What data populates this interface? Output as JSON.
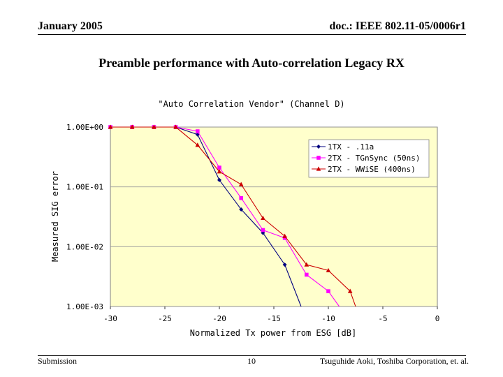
{
  "header": {
    "date": "January 2005",
    "doc_id": "doc.: IEEE 802.11-05/0006r1"
  },
  "slide_title": "Preamble performance with Auto-correlation Legacy RX",
  "footer": {
    "left": "Submission",
    "page": "10",
    "right": "Tsuguhide Aoki, Toshiba Corporation,  et. al."
  },
  "colors": {
    "plot_bg": "#FFFFCC",
    "series_1": "#000080",
    "series_2": "#FF00FF",
    "series_3": "#CC0000",
    "grid": "#999999"
  },
  "chart_data": {
    "type": "line",
    "title": "\"Auto Correlation Vendor\" (Channel D)",
    "xlabel": "Normalized Tx power from ESG [dB]",
    "ylabel": "Measured SIG error",
    "xlim": [
      -30,
      0
    ],
    "ylim": [
      0.001,
      1
    ],
    "yscale": "log",
    "x_ticks": [
      -30,
      -25,
      -20,
      -15,
      -10,
      -5,
      0
    ],
    "x_tick_labels": [
      "-30",
      "-25",
      "-20",
      "-15",
      "-10",
      "-5",
      "0"
    ],
    "y_ticks": [
      1,
      0.1,
      0.01,
      0.001
    ],
    "y_tick_labels": [
      "1.00E+00",
      "1.00E-01",
      "1.00E-02",
      "1.00E-03"
    ],
    "grid": "horizontal",
    "legend_position": "top-right",
    "series": [
      {
        "name": "1TX - .11a",
        "marker": "diamond",
        "x": [
          -30,
          -28,
          -26,
          -24,
          -22,
          -20,
          -18,
          -16,
          -14,
          -12.5
        ],
        "y": [
          1,
          1,
          1,
          1,
          0.75,
          0.13,
          0.042,
          0.017,
          0.005,
          0.001
        ]
      },
      {
        "name": "2TX - TGnSync (50ns)",
        "marker": "square",
        "x": [
          -30,
          -28,
          -26,
          -24,
          -22,
          -20,
          -18,
          -16,
          -14,
          -12,
          -10,
          -9
        ],
        "y": [
          1,
          1,
          1,
          1,
          0.85,
          0.21,
          0.065,
          0.019,
          0.014,
          0.0034,
          0.0018,
          0.001
        ]
      },
      {
        "name": "2TX - WWiSE (400ns)",
        "marker": "triangle",
        "x": [
          -30,
          -28,
          -26,
          -24,
          -22,
          -20,
          -18,
          -16,
          -14,
          -12,
          -10,
          -8,
          -7.5
        ],
        "y": [
          1,
          1,
          1,
          1,
          0.5,
          0.18,
          0.11,
          0.03,
          0.015,
          0.005,
          0.004,
          0.0018,
          0.001
        ]
      }
    ]
  }
}
